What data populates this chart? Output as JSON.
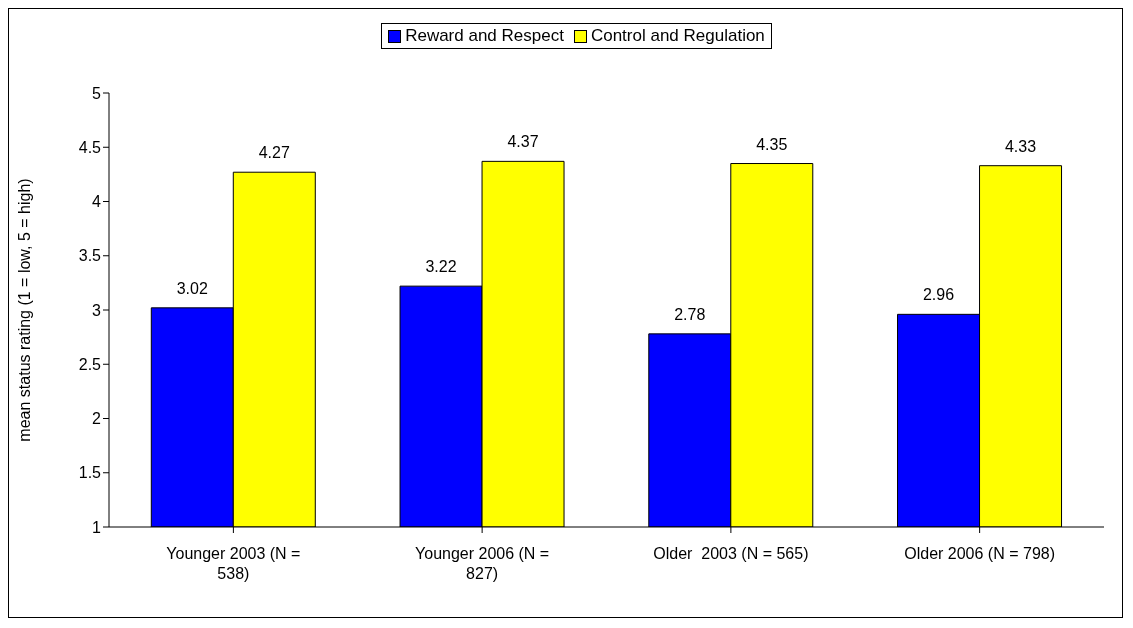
{
  "chart_data": {
    "type": "bar",
    "ylabel": "mean status rating (1 = low, 5 = high)",
    "categories": [
      "Younger 2003 (N = 538)",
      "Younger 2006 (N = 827)",
      "Older  2003 (N = 565)",
      "Older 2006 (N = 798)"
    ],
    "series": [
      {
        "name": "Reward and Respect",
        "color": "#0000ff",
        "values": [
          3.02,
          3.22,
          2.78,
          2.96
        ]
      },
      {
        "name": "Control and Regulation",
        "color": "#ffff00",
        "values": [
          4.27,
          4.37,
          4.35,
          4.33
        ]
      }
    ],
    "ylim": [
      1,
      5
    ],
    "yticks": [
      1,
      1.5,
      2,
      2.5,
      3,
      3.5,
      4,
      4.5,
      5
    ],
    "grid": false,
    "legend": "top",
    "data_labels": true
  }
}
